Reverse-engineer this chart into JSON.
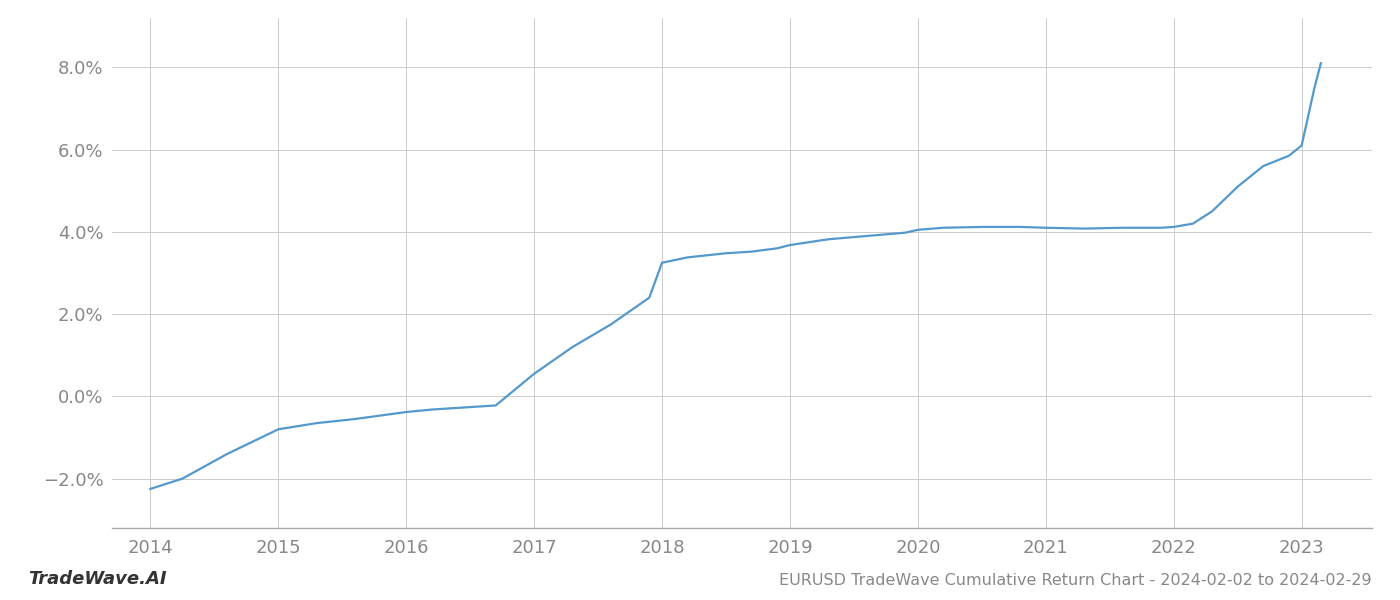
{
  "title": "EURUSD TradeWave Cumulative Return Chart - 2024-02-02 to 2024-02-29",
  "watermark": "TradeWave.AI",
  "line_color": "#5599cc",
  "background_color": "#ffffff",
  "grid_color": "#cccccc",
  "x_values": [
    2014.0,
    2014.25,
    2014.6,
    2015.0,
    2015.3,
    2015.6,
    2016.0,
    2016.2,
    2016.4,
    2016.7,
    2017.0,
    2017.3,
    2017.6,
    2017.9,
    2018.0,
    2018.2,
    2018.5,
    2018.7,
    2018.9,
    2019.0,
    2019.3,
    2019.6,
    2019.9,
    2020.0,
    2020.2,
    2020.5,
    2020.8,
    2021.0,
    2021.3,
    2021.6,
    2021.9,
    2022.0,
    2022.15,
    2022.3,
    2022.5,
    2022.7,
    2022.9,
    2023.0,
    2023.1,
    2023.15
  ],
  "y_values": [
    -2.25,
    -2.0,
    -1.4,
    -0.8,
    -0.65,
    -0.55,
    -0.38,
    -0.32,
    -0.28,
    -0.22,
    0.55,
    1.2,
    1.75,
    2.4,
    3.25,
    3.38,
    3.48,
    3.52,
    3.6,
    3.68,
    3.82,
    3.9,
    3.98,
    4.05,
    4.1,
    4.12,
    4.12,
    4.1,
    4.08,
    4.1,
    4.1,
    4.12,
    4.2,
    4.5,
    5.1,
    5.6,
    5.85,
    6.1,
    7.5,
    8.1
  ],
  "xlim": [
    2013.7,
    2023.55
  ],
  "ylim": [
    -3.2,
    9.2
  ],
  "yticks": [
    -2.0,
    0.0,
    2.0,
    4.0,
    6.0,
    8.0
  ],
  "ytick_labels": [
    "−2.0%",
    "0.0%",
    "2.0%",
    "4.0%",
    "6.0%",
    "8.0%"
  ],
  "xticks": [
    2014,
    2015,
    2016,
    2017,
    2018,
    2019,
    2020,
    2021,
    2022,
    2023
  ],
  "line_width": 1.6,
  "title_fontsize": 11.5,
  "tick_fontsize": 13,
  "watermark_fontsize": 13,
  "spine_color": "#aaaaaa"
}
